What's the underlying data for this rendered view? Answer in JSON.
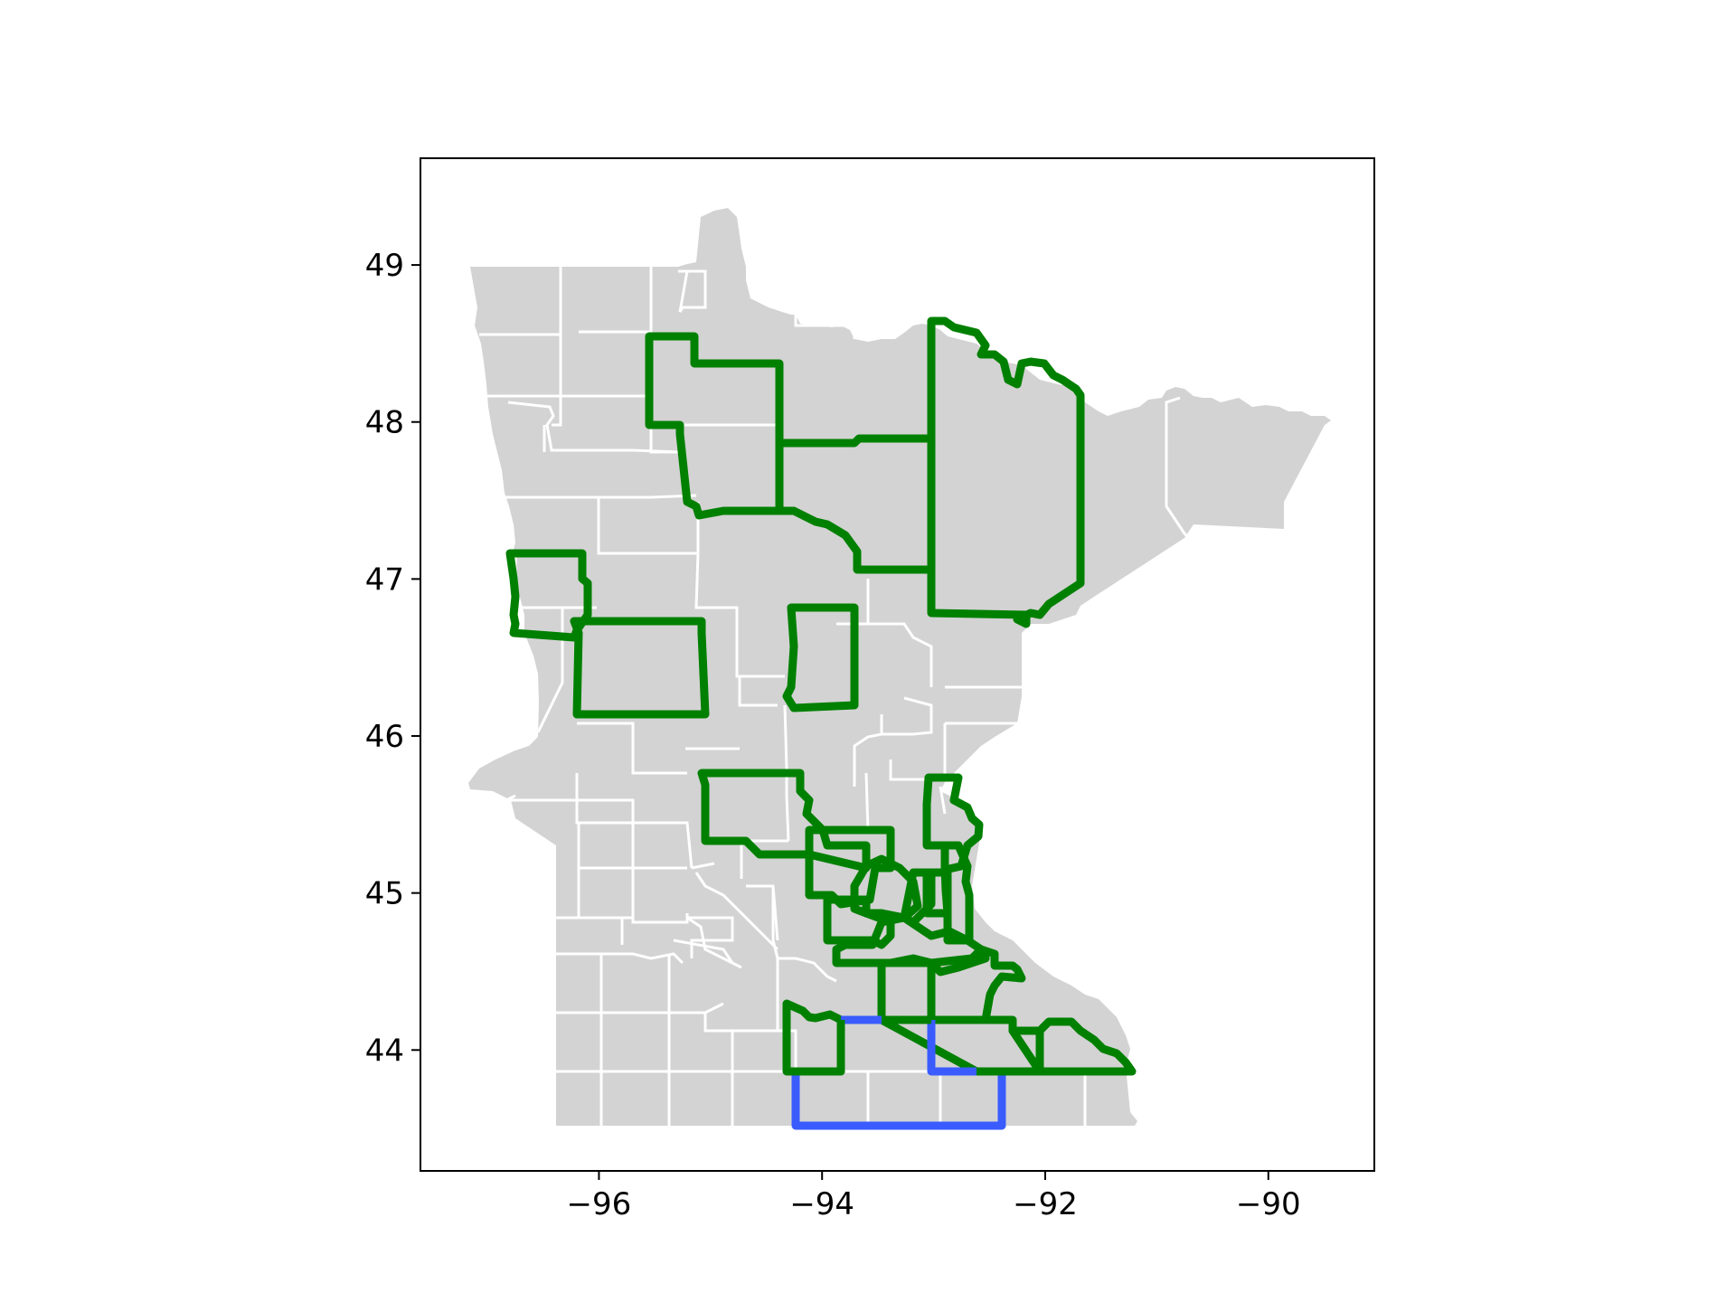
{
  "map": {
    "projection": "lon-lat",
    "xlim": [
      -97.6,
      -89.05
    ],
    "ylim": [
      43.23,
      49.68
    ],
    "grid": false,
    "colors": {
      "state_fill": "#d3d3d3",
      "county_border": "#ffffff",
      "highlight_green": "#008000",
      "highlight_blue": "#3a5cff",
      "axis": "#000000"
    },
    "x_ticks": [
      {
        "value": -96,
        "label": "−96"
      },
      {
        "value": -94,
        "label": "−94"
      },
      {
        "value": -92,
        "label": "−92"
      },
      {
        "value": -90,
        "label": "−90"
      }
    ],
    "y_ticks": [
      {
        "value": 44,
        "label": "44"
      },
      {
        "value": 45,
        "label": "45"
      },
      {
        "value": 46,
        "label": "46"
      },
      {
        "value": 47,
        "label": "47"
      },
      {
        "value": 48,
        "label": "48"
      },
      {
        "value": 49,
        "label": "49"
      }
    ]
  }
}
